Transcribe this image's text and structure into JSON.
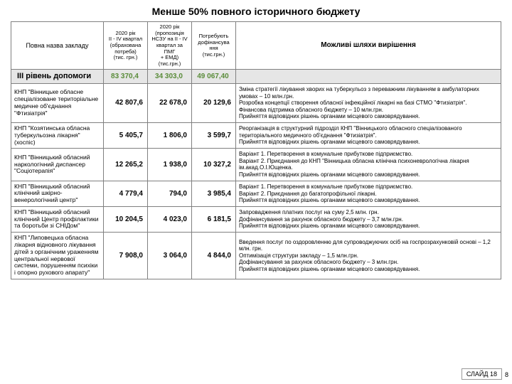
{
  "title": "Менше 50% повного історичного бюджету",
  "columns": [
    "Повна назва закладу",
    "2020 рік\nII - IV квартал\n(обрахована\nпотреба)\n(тис. грн.)",
    "2020 рік\n(пропозиція\nНСЗУ на II - IV\nквартал за ПМГ\n+ ЕМД)\n(тис.грн.)",
    "Потребують\nдофінансува\nння\n(тис.грн.)",
    "Можливі шляхи вирішення"
  ],
  "level_row": {
    "label": "ІІІ рівень допомоги",
    "v1": "83 370,4",
    "v2": "34 303,0",
    "v3": "49 067,40",
    "sol": ""
  },
  "rows": [
    {
      "name": "КНП \"Вінницьке обласне спеціалізоване територіальне медичне об'єднання \"Фтизіатрія\"",
      "v1": "42 807,6",
      "v2": "22 678,0",
      "v3": "20 129,6",
      "sol": "Зміна стратегії лікування хворих на туберкульоз з переважним лікуванням в амбулаторних умовах – 10 млн.грн.\nРозробка концепції створення обласної інфекційної лікарні на базі СТМО \"Фтизіатрія\".\nФінансова підтримка обласного бюджету – 10 млн.грн.\nПрийняття відповідних рішень органами місцевого самоврядування."
    },
    {
      "name": "КНП \"Козятинська обласна туберкульозна лікарня\" (хоспіс)",
      "v1": "5 405,7",
      "v2": "1 806,0",
      "v3": "3 599,7",
      "sol": "Реорганізація в структурний підрозділ КНП \"Вінницького обласного спеціалізованого територіального медичного об'єднання \"Фтизіатрія\".\nПрийняття відповідних рішень органами місцевого самоврядування."
    },
    {
      "name": "КНП \"Вінницький обласний наркологічний диспансер \"Соціотерапія\"",
      "v1": "12 265,2",
      "v2": "1 938,0",
      "v3": "10 327,2",
      "sol": "Варіант 1. Перетворення в комунальне прибуткове підприємство.\nВаріант 2.  Приєднання до КНП \"Вінницька обласна клінічна психоневрологічна лікарня ім.акад.О.І.Ющенка.\nПрийняття відповідних рішень органами місцевого самоврядування."
    },
    {
      "name": "КНП \"Вінницький обласний клінічний шкірно-венерологічний центр\"",
      "v1": "4 779,4",
      "v2": "794,0",
      "v3": "3 985,4",
      "sol": "Варіант 1. Перетворення в комунальне прибуткове підприємство.\nВаріант 2. Приєднання до багатопрофільної лікарні.\nПрийняття відповідних рішень органами місцевого самоврядування."
    },
    {
      "name": "КНП \"Вінницький обласний клінічний Центр профілактики та боротьби зі СНІДом\"",
      "v1": "10 204,5",
      "v2": "4 023,0",
      "v3": "6 181,5",
      "sol": "Запровадження платних послуг на суму 2,5 млн. грн.\nДофінансування за рахунок обласного бюджету – 3,7 млн.грн.\nПрийняття відповідних рішень органами місцевого самоврядування."
    },
    {
      "name": "КНП \"Липовецька обласна лікарня відновного лікування дітей з органічним ураженням центральної нервової системи, порушенням психіки і опорно рухового апарату\"",
      "v1": "7 908,0",
      "v2": "3 064,0",
      "v3": "4 844,0",
      "sol": "Введення послуг по оздоровленню для супроводжуючих осіб на госпрозрахунковій основі – 1,2 млн. грн.\nОптимізація структури закладу – 1,5 млн.грн.\nДофінансування за рахунок обласного бюджету – 3 млн.грн.\nПрийняття відповідних рішень органами місцевого самоврядування."
    }
  ],
  "footer_label": "СЛАЙД 18",
  "footer_page": "8"
}
